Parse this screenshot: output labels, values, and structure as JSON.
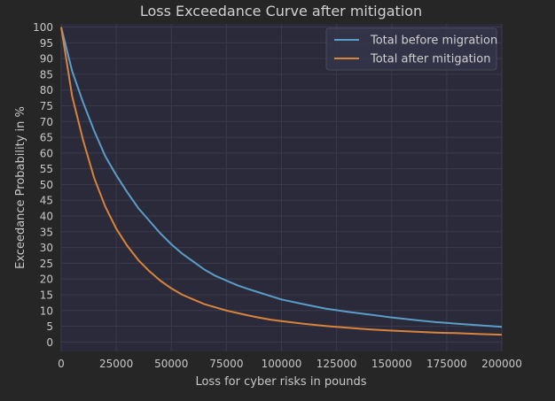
{
  "chart_data": {
    "type": "line",
    "title": "Loss Exceedance Curve after mitigation",
    "xlabel": "Loss for cyber risks in pounds",
    "ylabel": "Exceedance Probability in %",
    "xlim": [
      0,
      200000
    ],
    "ylim": [
      -3,
      101
    ],
    "xticks": [
      0,
      25000,
      50000,
      75000,
      100000,
      125000,
      150000,
      175000,
      200000
    ],
    "yticks": [
      0,
      5,
      10,
      15,
      20,
      25,
      30,
      35,
      40,
      45,
      50,
      55,
      60,
      65,
      70,
      75,
      80,
      85,
      90,
      95,
      100
    ],
    "grid": true,
    "legend_position": "top-right",
    "series": [
      {
        "name": "Total before migration",
        "color": "#5a9ec8",
        "x": [
          0,
          5000,
          10000,
          15000,
          20000,
          25000,
          30000,
          35000,
          40000,
          45000,
          50000,
          55000,
          60000,
          65000,
          70000,
          75000,
          80000,
          85000,
          90000,
          95000,
          100000,
          110000,
          120000,
          130000,
          140000,
          150000,
          160000,
          170000,
          180000,
          190000,
          200000
        ],
        "y": [
          100,
          86,
          76,
          67,
          59,
          53,
          47.5,
          42.5,
          38.5,
          34.5,
          31,
          28,
          25.5,
          23,
          21,
          19.5,
          18,
          16.8,
          15.7,
          14.6,
          13.5,
          12,
          10.6,
          9.6,
          8.7,
          7.8,
          7,
          6.3,
          5.8,
          5.3,
          4.8
        ]
      },
      {
        "name": "Total after mitigation",
        "color": "#d9843b",
        "x": [
          0,
          5000,
          10000,
          15000,
          20000,
          25000,
          30000,
          35000,
          40000,
          45000,
          50000,
          55000,
          60000,
          65000,
          70000,
          75000,
          80000,
          85000,
          90000,
          95000,
          100000,
          110000,
          120000,
          130000,
          140000,
          150000,
          160000,
          170000,
          180000,
          190000,
          200000
        ],
        "y": [
          100,
          78,
          64,
          52,
          43,
          36,
          30.5,
          26,
          22.5,
          19.5,
          17,
          15,
          13.5,
          12,
          11,
          10,
          9.2,
          8.4,
          7.7,
          7.1,
          6.6,
          5.8,
          5.1,
          4.5,
          4,
          3.6,
          3.3,
          3,
          2.8,
          2.5,
          2.3
        ]
      }
    ]
  }
}
